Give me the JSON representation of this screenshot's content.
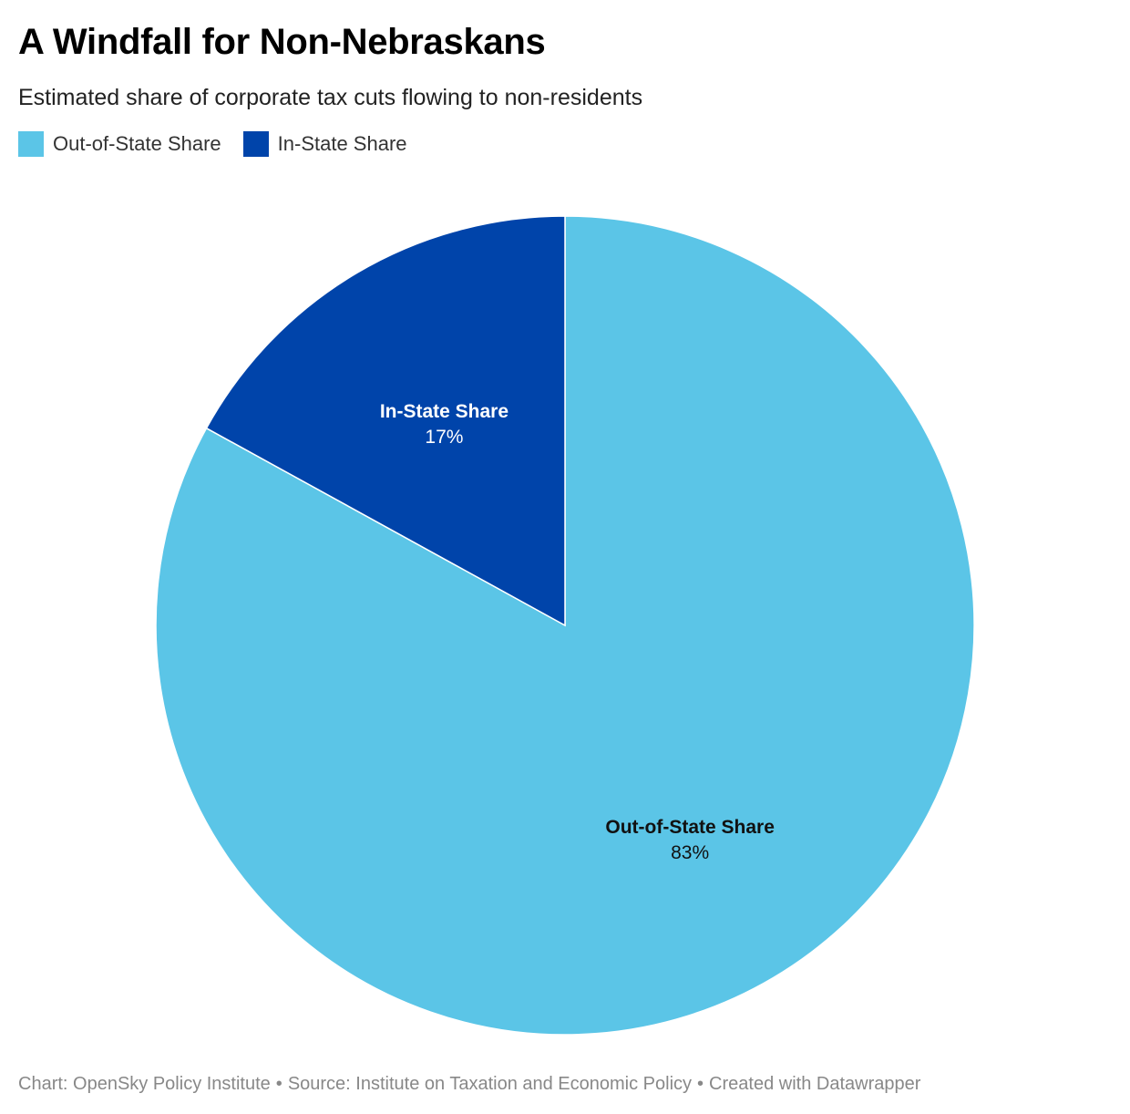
{
  "header": {
    "title": "A Windfall for Non-Nebraskans",
    "subtitle": "Estimated share of corporate tax cuts flowing to non-residents"
  },
  "legend": {
    "items": [
      {
        "label": "Out-of-State Share",
        "color": "#5bc5e7"
      },
      {
        "label": "In-State Share",
        "color": "#0044aa"
      }
    ]
  },
  "chart_data": {
    "type": "pie",
    "slices": [
      {
        "name": "Out-of-State Share",
        "value": 83,
        "label": "83%",
        "color": "#5bc5e7",
        "label_color": "#111111"
      },
      {
        "name": "In-State Share",
        "value": 17,
        "label": "17%",
        "color": "#0044aa",
        "label_color": "#ffffff"
      }
    ],
    "start_angle": "12 o'clock",
    "direction": "clockwise",
    "legend_position": "top-left"
  },
  "footer": {
    "chart_credit": "Chart: OpenSky Policy Institute",
    "source": "Source: Institute on Taxation and Economic Policy",
    "created_with": "Created with Datawrapper",
    "separator": "•"
  }
}
